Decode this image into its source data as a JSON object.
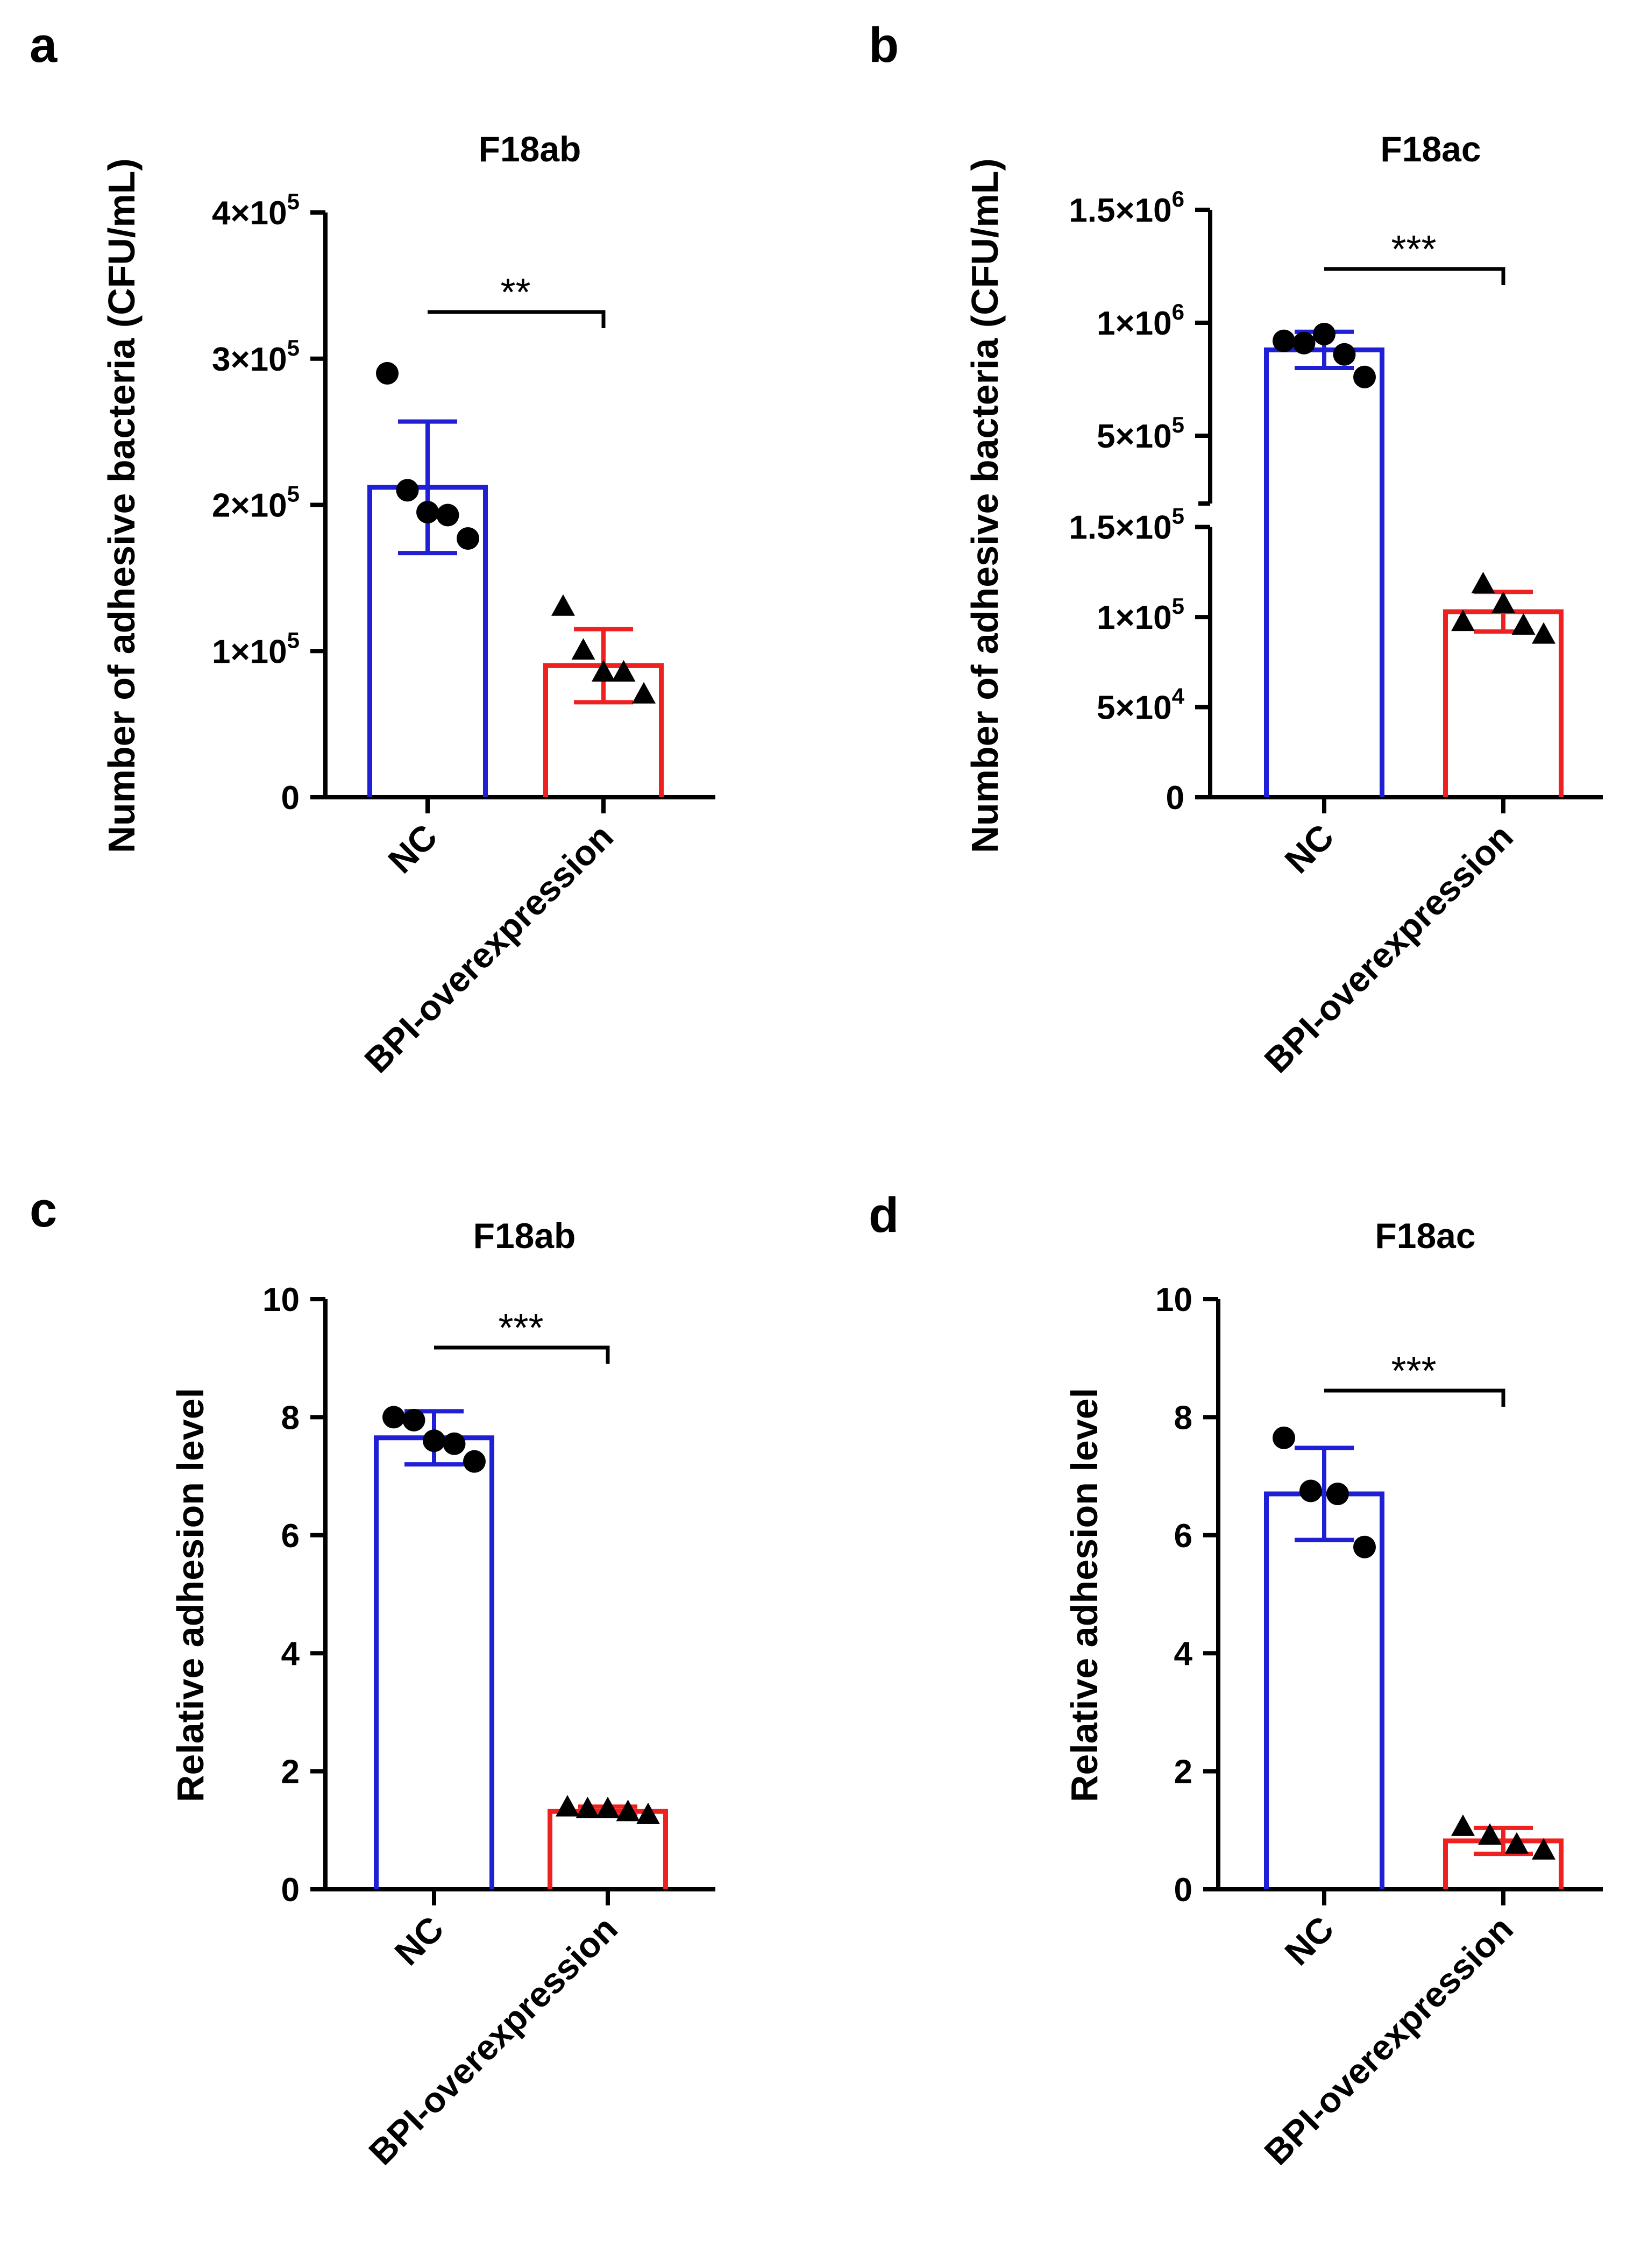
{
  "colors": {
    "nc": "#1f1fd6",
    "bpi": "#ef2020",
    "axis": "#000000",
    "point": "#000000"
  },
  "chart_data": [
    {
      "panel_label": "a",
      "type": "bar",
      "title": "F18ab",
      "ylabel": "Number of adhesive bacteria (CFU/mL)",
      "categories": [
        "NC",
        "BPI-overexpression"
      ],
      "scale": "linear",
      "ylim": [
        0,
        400000
      ],
      "yticks": [
        {
          "value": 0,
          "label": "0"
        },
        {
          "value": 100000,
          "label": "1×10",
          "exp": "5"
        },
        {
          "value": 200000,
          "label": "2×10",
          "exp": "5"
        },
        {
          "value": 300000,
          "label": "3×10",
          "exp": "5"
        },
        {
          "value": 400000,
          "label": "4×10",
          "exp": "5"
        }
      ],
      "series": [
        {
          "name": "NC",
          "mean": 212000,
          "sd": 45000,
          "marker": "circle",
          "points": [
            290000,
            210000,
            195000,
            193000,
            177000
          ]
        },
        {
          "name": "BPI-overexpression",
          "mean": 90000,
          "sd": 25000,
          "marker": "triangle",
          "points": [
            130000,
            100000,
            85000,
            85000,
            70000
          ]
        }
      ],
      "significance": "**"
    },
    {
      "panel_label": "b",
      "type": "bar",
      "title": "F18ac",
      "ylabel": "Number of adhesive bacteria (CFU/mL)",
      "categories": [
        "NC",
        "BPI-overexpression"
      ],
      "scale": "broken",
      "segments": [
        {
          "range": [
            0,
            150000
          ],
          "share": 0.46
        },
        {
          "range": [
            200000,
            1500000
          ],
          "share": 0.5
        }
      ],
      "yticks": [
        {
          "value": 0,
          "label": "0"
        },
        {
          "value": 50000,
          "label": "5×10",
          "exp": "4"
        },
        {
          "value": 100000,
          "label": "1×10",
          "exp": "5"
        },
        {
          "value": 150000,
          "label": "1.5×10",
          "exp": "5"
        },
        {
          "value": 500000,
          "label": "5×10",
          "exp": "5"
        },
        {
          "value": 1000000,
          "label": "1×10",
          "exp": "6"
        },
        {
          "value": 1500000,
          "label": "1.5×10",
          "exp": "6"
        }
      ],
      "series": [
        {
          "name": "NC",
          "mean": 880000,
          "sd": 80000,
          "marker": "circle",
          "points": [
            920000,
            910000,
            950000,
            860000,
            760000
          ]
        },
        {
          "name": "BPI-overexpression",
          "mean": 103000,
          "sd": 11000,
          "marker": "triangle",
          "points": [
            97000,
            118000,
            107000,
            95000,
            90000
          ]
        }
      ],
      "significance": "***"
    },
    {
      "panel_label": "c",
      "type": "bar",
      "title": "F18ab",
      "ylabel": "Relative adhesion level",
      "categories": [
        "NC",
        "BPI-overexpression"
      ],
      "scale": "linear",
      "ylim": [
        0,
        10
      ],
      "yticks": [
        {
          "value": 0,
          "label": "0"
        },
        {
          "value": 2,
          "label": "2"
        },
        {
          "value": 4,
          "label": "4"
        },
        {
          "value": 6,
          "label": "6"
        },
        {
          "value": 8,
          "label": "8"
        },
        {
          "value": 10,
          "label": "10"
        }
      ],
      "series": [
        {
          "name": "NC",
          "mean": 7.65,
          "sd": 0.45,
          "marker": "circle",
          "points": [
            8.0,
            7.95,
            7.6,
            7.55,
            7.25
          ]
        },
        {
          "name": "BPI-overexpression",
          "mean": 1.32,
          "sd": 0.08,
          "marker": "triangle",
          "points": [
            1.38,
            1.35,
            1.35,
            1.3,
            1.25
          ]
        }
      ],
      "significance": "***"
    },
    {
      "panel_label": "d",
      "type": "bar",
      "title": "F18ac",
      "ylabel": "Relative adhesion level",
      "categories": [
        "NC",
        "BPI-overexpression"
      ],
      "scale": "linear",
      "ylim": [
        0,
        10
      ],
      "yticks": [
        {
          "value": 0,
          "label": "0"
        },
        {
          "value": 2,
          "label": "2"
        },
        {
          "value": 4,
          "label": "4"
        },
        {
          "value": 6,
          "label": "6"
        },
        {
          "value": 8,
          "label": "8"
        },
        {
          "value": 10,
          "label": "10"
        }
      ],
      "series": [
        {
          "name": "NC",
          "mean": 6.7,
          "sd": 0.78,
          "marker": "circle",
          "points": [
            7.65,
            6.75,
            6.7,
            5.8
          ]
        },
        {
          "name": "BPI-overexpression",
          "mean": 0.82,
          "sd": 0.22,
          "marker": "triangle",
          "points": [
            1.05,
            0.9,
            0.75,
            0.65
          ]
        }
      ],
      "significance": "***"
    }
  ]
}
